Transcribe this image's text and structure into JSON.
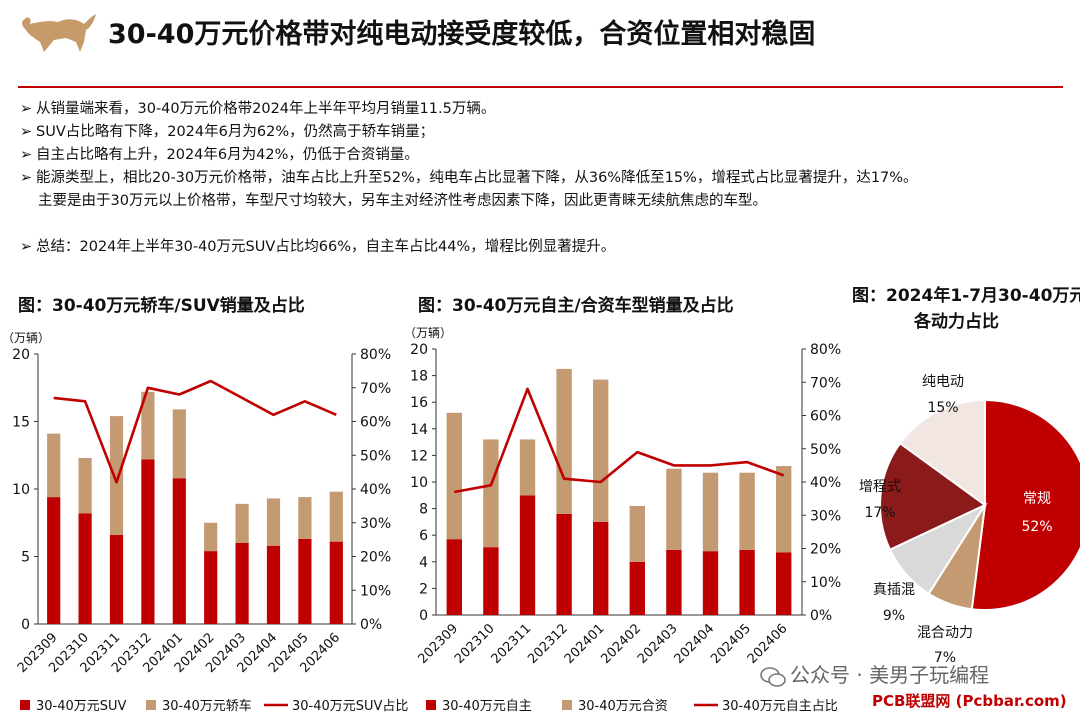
{
  "page": {
    "title": "30-40万元价格带对纯电动接受度较低，合资位置相对稳固",
    "bullets": [
      "从销量端来看，30-40万元价格带2024年上半年平均月销量11.5万辆。",
      "SUV占比略有下降，2024年6月为62%，仍然高于轿车销量；",
      "自主占比略有上升，2024年6月为42%，仍低于合资销量。",
      "能源类型上，相比20-30万元价格带，油车占比上升至52%，纯电车占比显著下降，从36%降低至15%，增程式占比显著提升，达17%。"
    ],
    "bullet_cont": "主要是由于30万元以上价格带，车型尺寸均较大，另车主对经济性考虑因素下降，因此更青睐无续航焦虑的车型。",
    "summary": "总结：2024年上半年30-40万元SUV占比均66%，自主车占比44%，增程比例显著提升。",
    "bullet_marker": "➢",
    "watermark": "公众号 · 美男子玩编程",
    "site": "PCB联盟网 (Pcbbar.com)"
  },
  "colors": {
    "primary": "#c00000",
    "secondary": "#c49a72",
    "line": "#c00000",
    "pie_dark": "#8b1a1a",
    "pie_grey": "#d9d9d9",
    "pie_light": "#f2e6e2"
  },
  "chart_data": [
    {
      "type": "bar",
      "stacked": true,
      "title": "图：30-40万元轿车/SUV销量及占比",
      "ylabel": "（万辆）",
      "ylim": [
        0,
        20
      ],
      "yticks": [
        "0",
        "5",
        "10",
        "15",
        "20"
      ],
      "y2lim": [
        0,
        80
      ],
      "y2ticks": [
        "0%",
        "10%",
        "20%",
        "30%",
        "40%",
        "50%",
        "60%",
        "70%",
        "80%"
      ],
      "categories": [
        "202309",
        "202310",
        "202311",
        "202312",
        "202401",
        "202402",
        "202403",
        "202404",
        "202405",
        "202406"
      ],
      "series": [
        {
          "name": "30-40万元SUV",
          "type": "bar",
          "values": [
            9.4,
            8.2,
            6.6,
            12.2,
            10.8,
            5.4,
            6.0,
            5.8,
            6.3,
            6.1
          ]
        },
        {
          "name": "30-40万元轿车",
          "type": "bar",
          "values": [
            4.7,
            4.1,
            8.8,
            5.0,
            5.1,
            2.1,
            2.9,
            3.5,
            3.1,
            3.7
          ]
        },
        {
          "name": "30-40万元SUV占比",
          "type": "line",
          "axis": "right",
          "values": [
            67,
            66,
            42,
            70,
            68,
            72,
            67,
            62,
            66,
            62
          ]
        }
      ],
      "legend": "bottom"
    },
    {
      "type": "bar",
      "stacked": true,
      "title": "图：30-40万元自主/合资车型销量及占比",
      "ylabel": "（万辆）",
      "ylim": [
        0,
        20
      ],
      "yticks": [
        "0",
        "2",
        "4",
        "6",
        "8",
        "10",
        "12",
        "14",
        "16",
        "18",
        "20"
      ],
      "y2lim": [
        0,
        80
      ],
      "y2ticks": [
        "0%",
        "10%",
        "20%",
        "30%",
        "40%",
        "50%",
        "60%",
        "70%",
        "80%"
      ],
      "categories": [
        "202309",
        "202310",
        "202311",
        "202312",
        "202401",
        "202402",
        "202403",
        "202404",
        "202405",
        "202406"
      ],
      "series": [
        {
          "name": "30-40万元自主",
          "type": "bar",
          "values": [
            5.7,
            5.1,
            9.0,
            7.6,
            7.0,
            4.0,
            4.9,
            4.8,
            4.9,
            4.7
          ]
        },
        {
          "name": "30-40万元合资",
          "type": "bar",
          "values": [
            9.5,
            8.1,
            4.2,
            10.9,
            10.7,
            4.2,
            6.1,
            5.9,
            5.8,
            6.5
          ]
        },
        {
          "name": "30-40万元自主占比",
          "type": "line",
          "axis": "right",
          "values": [
            37,
            39,
            68,
            41,
            40,
            49,
            45,
            45,
            46,
            42
          ]
        }
      ],
      "legend": "bottom"
    },
    {
      "type": "pie",
      "title": "图：2024年1-7月30-40万元各动力占比",
      "title_lines": [
        "图：2024年1-7月30-40万元",
        "各动力占比"
      ],
      "slices": [
        {
          "name": "常规",
          "value": 52,
          "label": "52%",
          "color": "#c00000"
        },
        {
          "name": "混合动力",
          "value": 7,
          "label": "7%",
          "color": "#c49a72"
        },
        {
          "name": "真插混",
          "value": 9,
          "label": "9%",
          "color": "#d9d9d9"
        },
        {
          "name": "增程式",
          "value": 17,
          "label": "17%",
          "color": "#8b1a1a"
        },
        {
          "name": "纯电动",
          "value": 15,
          "label": "15%",
          "color": "#f2e6e2"
        }
      ]
    }
  ]
}
